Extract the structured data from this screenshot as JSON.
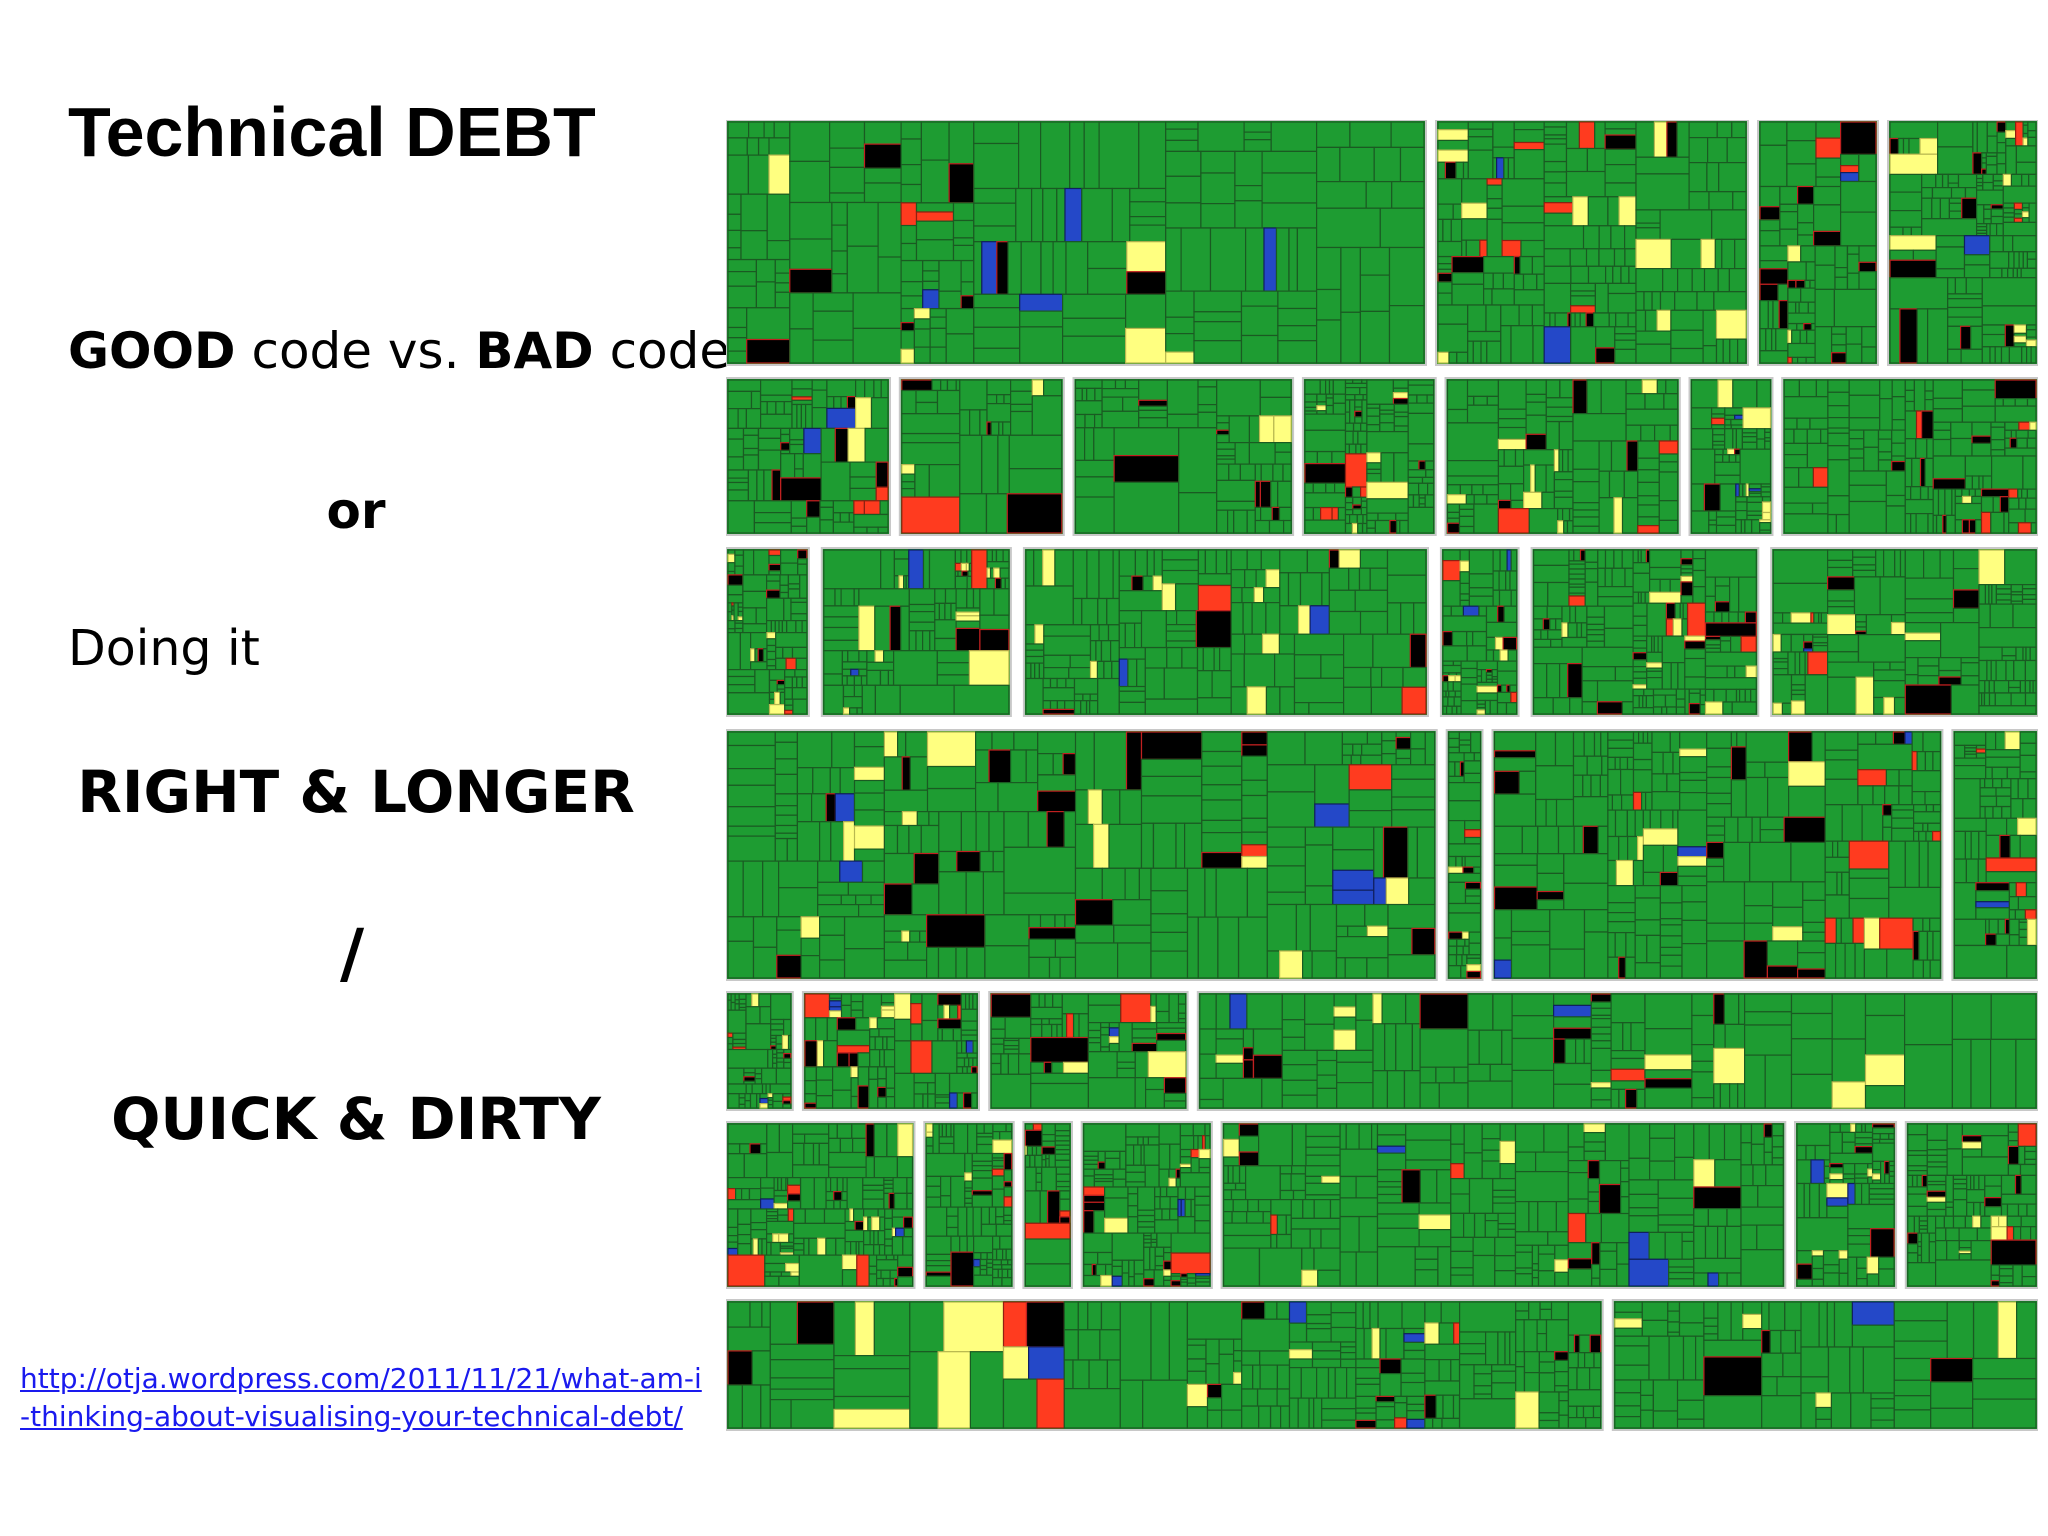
{
  "slide": {
    "title": "Technical DEBT",
    "good_word": "GOOD",
    "code_vs": " code vs. ",
    "bad_word": "BAD",
    "code_end": " code",
    "or": "or",
    "doing_it": "Doing it",
    "right_longer": "RIGHT & LONGER",
    "slash": "/",
    "quick_dirty": "QUICK & DIRTY",
    "link_text": "http://otja.wordpress.com/2011/11/21/what-am-i-thinking-about-visualising-your-technical-debt/"
  },
  "treemap": {
    "colors": {
      "good": "#1e9c32",
      "bad": "#000000",
      "warning": "#ffff80",
      "critical": "#ff3b1f",
      "info": "#2448c8",
      "gap": "#ffffff"
    }
  }
}
